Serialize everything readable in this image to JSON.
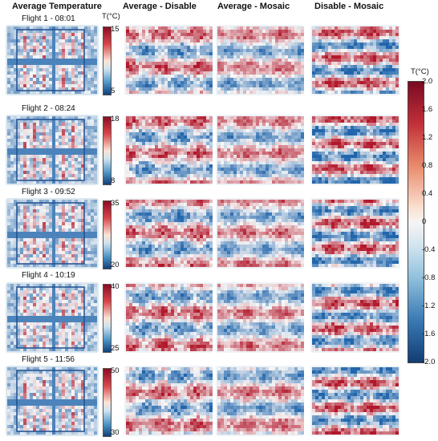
{
  "headers": [
    "Average Temperature",
    "Average - Disable",
    "Average - Mosaic",
    "Disable - Mosaic"
  ],
  "flights": [
    {
      "label": "Flight 1 - 08:01",
      "max": "15",
      "min": "5"
    },
    {
      "label": "Flight 2 - 08:24",
      "max": "18",
      "min": "8"
    },
    {
      "label": "Flight 3 - 09:52",
      "max": "35",
      "min": "20"
    },
    {
      "label": "Flight 4 - 10:19",
      "max": "40",
      "min": "25"
    },
    {
      "label": "Flight 5 - 11:56",
      "max": "50",
      "min": "30"
    }
  ],
  "unit_label": "T(°C)",
  "diff_scale": {
    "title": "T(°C)",
    "ticks": [
      "2.0",
      "1.6",
      "1.2",
      "0.8",
      "0.4",
      "0",
      "-0.4",
      "-0.8",
      "-1.2",
      "-1.6",
      "-2.0"
    ]
  },
  "colors": {
    "warm": "#b2182b",
    "neutral": "#f7f7f7",
    "cool": "#2166ac"
  }
}
